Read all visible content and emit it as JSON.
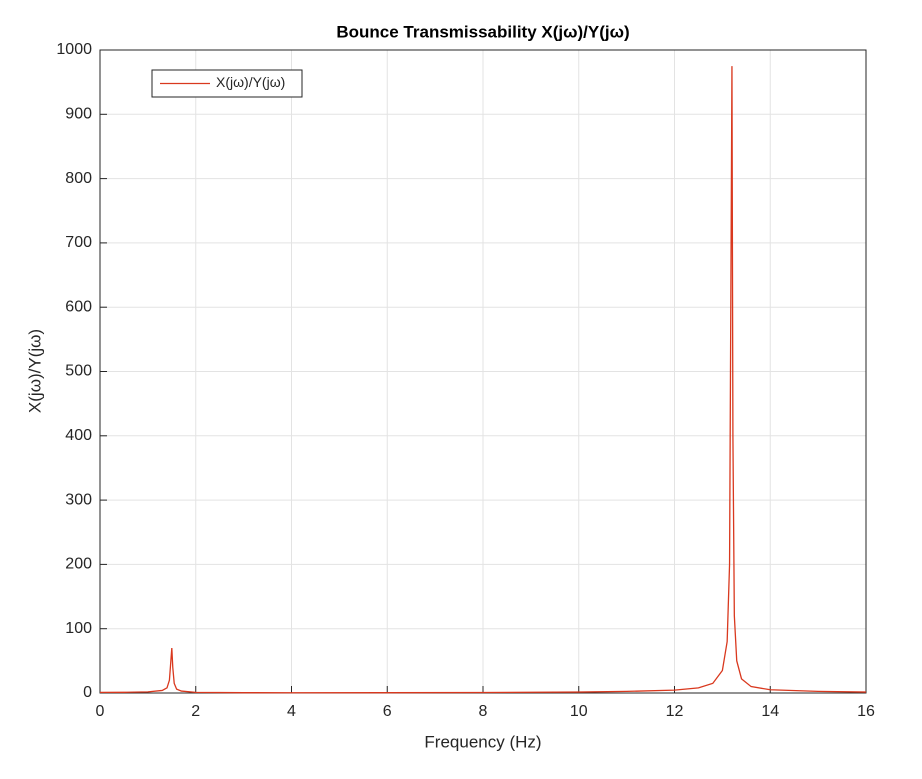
{
  "chart_data": {
    "type": "line",
    "title": "Bounce Transmissability X(jω)/Y(jω)",
    "x_label": "Frequency (Hz)",
    "y_label": "X(jω)/Y(jω)",
    "x": [
      0,
      0.5,
      1,
      1.3,
      1.4,
      1.45,
      1.5,
      1.52,
      1.55,
      1.6,
      1.7,
      2,
      3,
      4,
      6,
      8,
      10,
      11,
      12,
      12.5,
      12.8,
      13,
      13.1,
      13.15,
      13.2,
      13.22,
      13.25,
      13.3,
      13.4,
      13.6,
      14,
      15,
      16
    ],
    "series": [
      {
        "name": "X(jω)/Y(jω)",
        "color": "#d9381e",
        "values": [
          1,
          1.1,
          1.8,
          4,
          8,
          20,
          70,
          40,
          15,
          6,
          3,
          1,
          0.5,
          0.4,
          0.5,
          0.8,
          1.5,
          2.5,
          4.5,
          8,
          15,
          35,
          80,
          200,
          975,
          400,
          120,
          50,
          22,
          10,
          5,
          2.5,
          1.5
        ]
      }
    ],
    "xlim": [
      0,
      16
    ],
    "xticks": [
      0,
      2,
      4,
      6,
      8,
      10,
      12,
      14,
      16
    ],
    "ylim": [
      0,
      1000
    ],
    "yticks": [
      0,
      100,
      200,
      300,
      400,
      500,
      600,
      700,
      800,
      900,
      1000
    ],
    "grid": true,
    "legend": "top-left"
  }
}
